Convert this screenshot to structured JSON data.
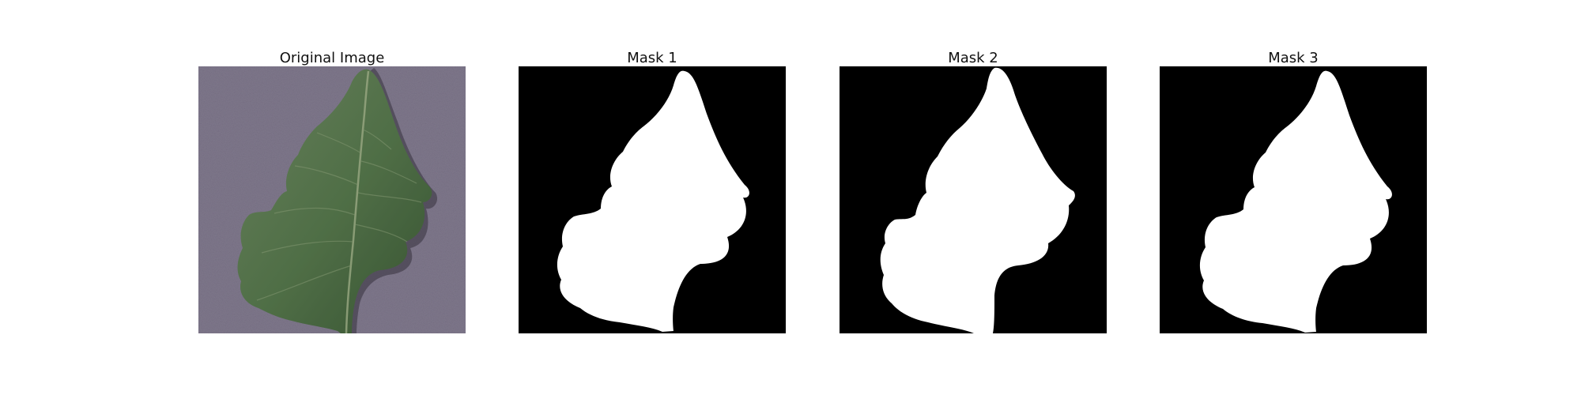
{
  "figure": {
    "panels": [
      {
        "title": "Original Image",
        "kind": "photo"
      },
      {
        "title": "Mask 1",
        "kind": "mask"
      },
      {
        "title": "Mask 2",
        "kind": "mask"
      },
      {
        "title": "Mask 3",
        "kind": "mask"
      }
    ],
    "colors": {
      "background": "#ffffff",
      "photo_background": "#8b8399",
      "leaf_dark": "#3c5a36",
      "leaf_light": "#6f8b62",
      "mask_background": "#000000",
      "mask_foreground": "#ffffff"
    }
  }
}
